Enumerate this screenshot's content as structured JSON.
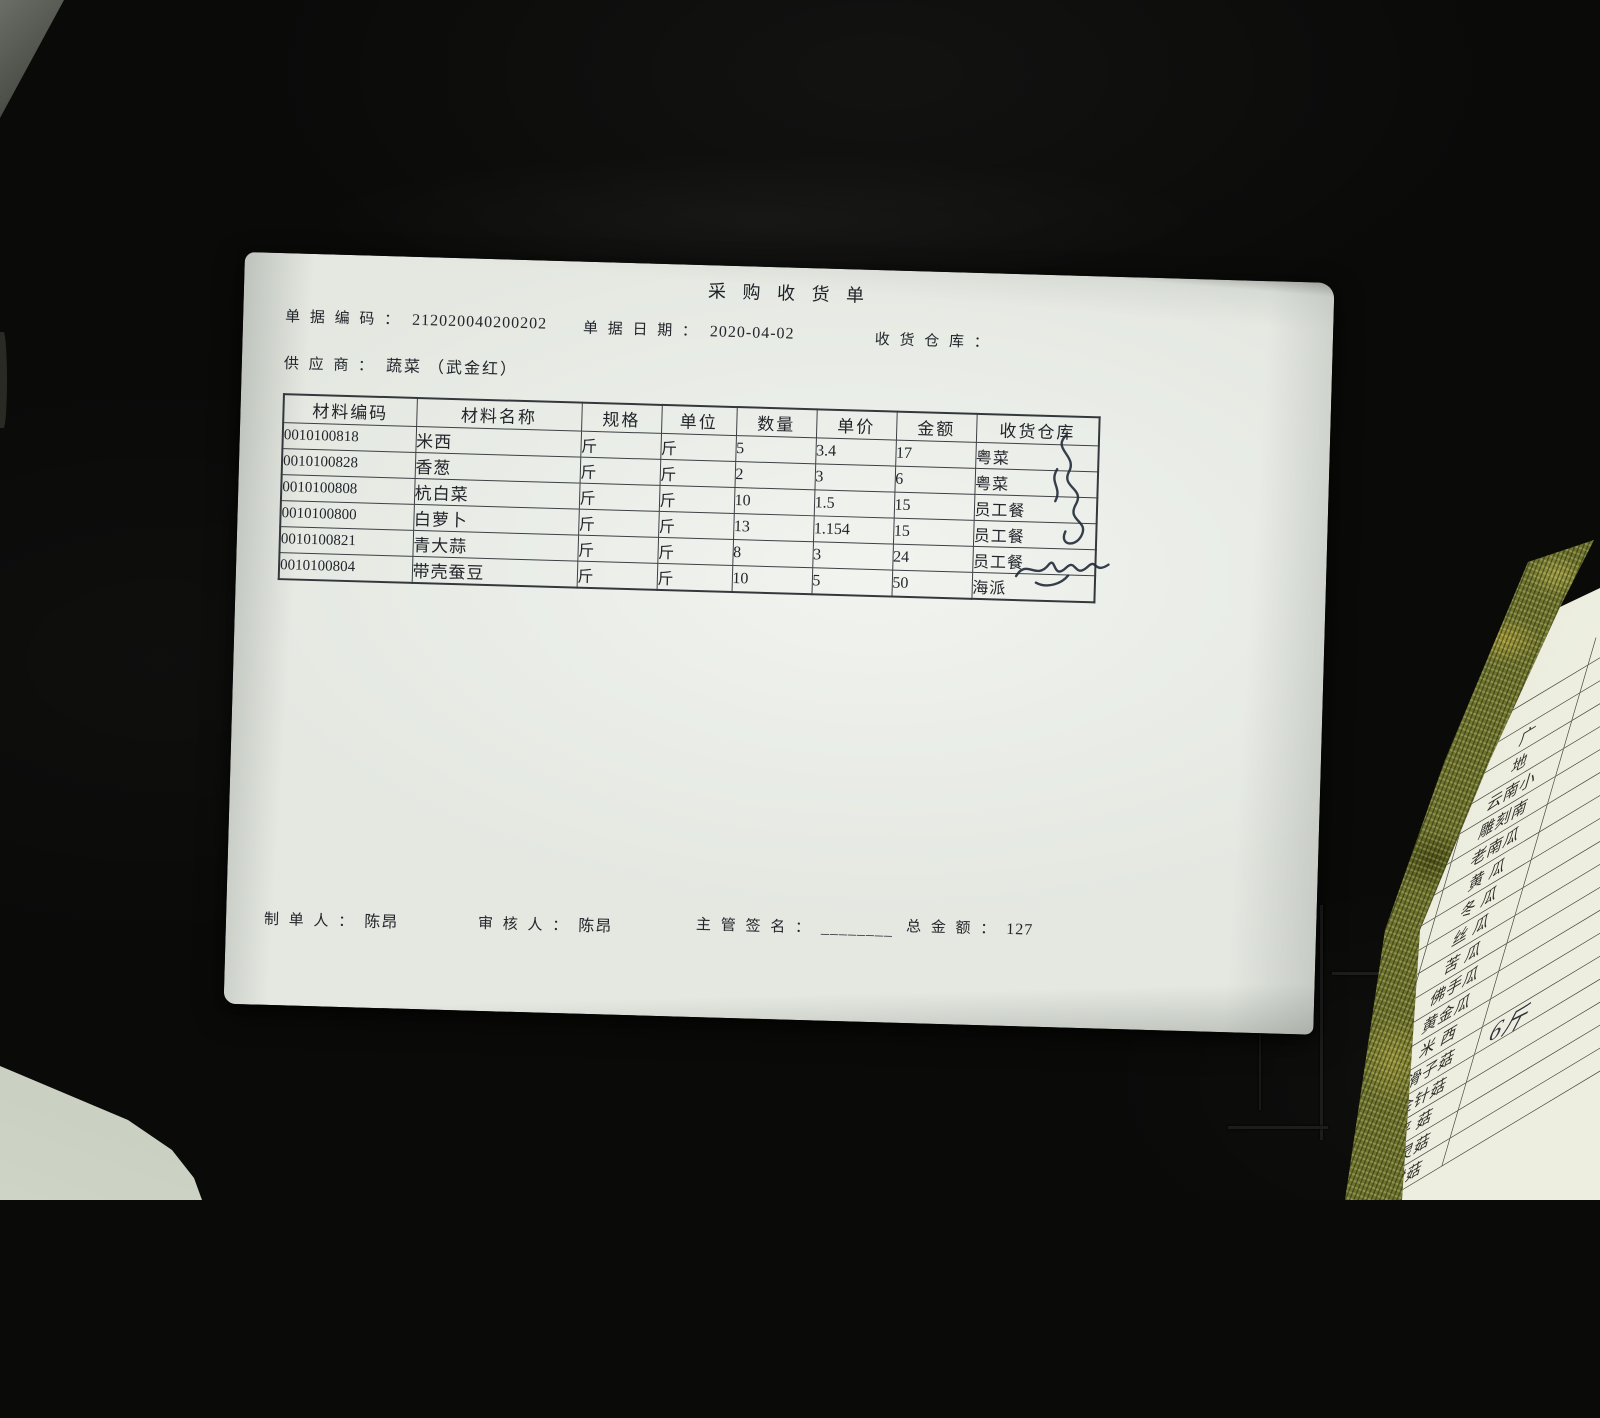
{
  "receipt": {
    "title": "采 购 收 货 单",
    "doc_code": {
      "label": "单 据 编 码 ：",
      "value": "212020040200202"
    },
    "doc_date": {
      "label": "单 据 日 期 ：",
      "value": "2020-04-02"
    },
    "warehouse": {
      "label": "收 货 仓 库 ：",
      "value": ""
    },
    "supplier": {
      "label": "供  应  商 ：",
      "value": "蔬菜 （武金红）"
    },
    "table": {
      "columns": [
        "材料编码",
        "材料名称",
        "规格",
        "单位",
        "数量",
        "单价",
        "金额",
        "收货仓库"
      ],
      "rows": [
        [
          "0010100818",
          "米西",
          "斤",
          "斤",
          "5",
          "3.4",
          "17",
          "粤菜"
        ],
        [
          "0010100828",
          "香葱",
          "斤",
          "斤",
          "2",
          "3",
          "6",
          "粤菜"
        ],
        [
          "0010100808",
          "杭白菜",
          "斤",
          "斤",
          "10",
          "1.5",
          "15",
          "员工餐"
        ],
        [
          "0010100800",
          "白萝卜",
          "斤",
          "斤",
          "13",
          "1.154",
          "15",
          "员工餐"
        ],
        [
          "0010100821",
          "青大蒜",
          "斤",
          "斤",
          "8",
          "3",
          "24",
          "员工餐"
        ],
        [
          "0010100804",
          "带壳蚕豆",
          "斤",
          "斤",
          "10",
          "5",
          "50",
          "海派"
        ]
      ]
    },
    "footer": {
      "maker": {
        "label": "制 单 人 ：",
        "value": "陈昂"
      },
      "auditor": {
        "label": "审 核 人 ：",
        "value": "陈昂"
      },
      "supervisor": {
        "label": "主 管 签 名 ：",
        "value": "________"
      },
      "total": {
        "label": "总 金 额 ：",
        "value": "127"
      }
    }
  },
  "corner_document": {
    "rows": [
      "",
      "",
      "广",
      "地",
      "云南小",
      "雕刻南",
      "老南瓜",
      "黄  瓜",
      "冬  瓜",
      "丝  瓜",
      "苦  瓜",
      "佛手瓜",
      "黄金瓜",
      "米  西",
      "滑子菇",
      "金针菇",
      "平  菇",
      "白灵菇",
      "茶树菇"
    ],
    "handwriting": "6斤",
    "handwriting_row_label": "滑子菇"
  },
  "colors": {
    "paper": "#e4e8e1",
    "ink": "#23262b",
    "folder_background": "#0a0a09",
    "gold_strip": "#6f7530",
    "desk_surface": "#aeb6a6",
    "signature_ink": "#222a3a"
  }
}
